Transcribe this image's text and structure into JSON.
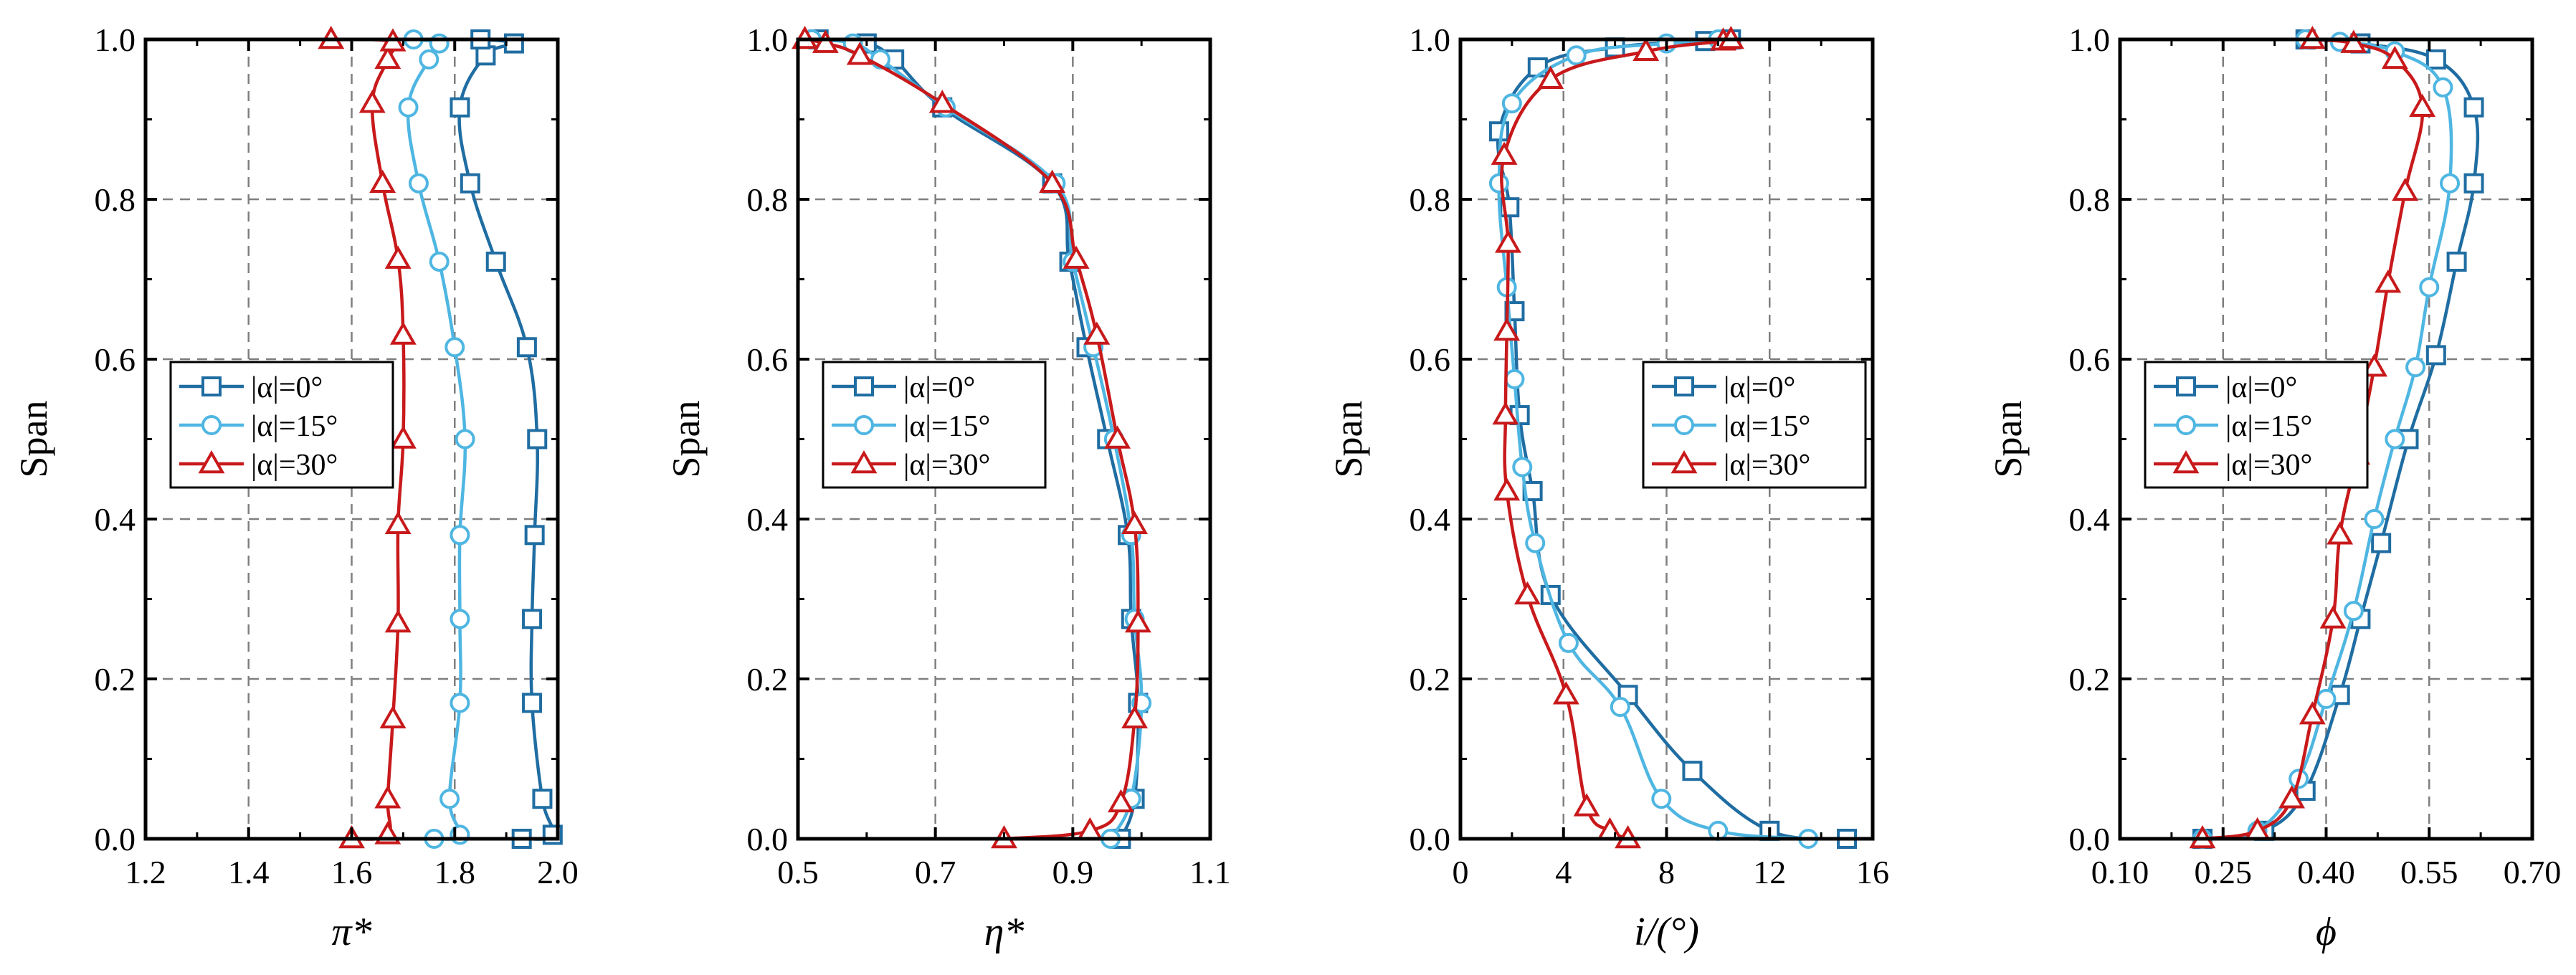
{
  "figure": {
    "colors": {
      "dark_blue": "#1f6da2",
      "light_blue": "#4fb6e2",
      "red": "#c8191b",
      "grid": "#7f7f7f"
    },
    "series_names": [
      "|α|=0°",
      "|α|=15°",
      "|α|=30°"
    ],
    "series_styles": [
      {
        "color": "#1f6da2",
        "marker": "square"
      },
      {
        "color": "#4fb6e2",
        "marker": "circle"
      },
      {
        "color": "#c8191b",
        "marker": "triangle"
      }
    ]
  },
  "chart_data": [
    {
      "type": "line",
      "xlabel": "π*",
      "ylabel": "Span",
      "xlim": [
        1.2,
        2.0
      ],
      "ylim": [
        0.0,
        1.0
      ],
      "xticks": [
        1.2,
        1.4,
        1.6,
        1.8,
        2.0
      ],
      "xtick_labels": [
        "1.2",
        "1.4",
        "1.6",
        "1.8",
        "2.0"
      ],
      "yticks": [
        0.0,
        0.2,
        0.4,
        0.6,
        0.8,
        1.0
      ],
      "ytick_labels": [
        "0.0",
        "0.2",
        "0.4",
        "0.6",
        "0.8",
        "1.0"
      ],
      "legend_position": "center-left",
      "series": [
        {
          "name": "|α|=0°",
          "points": [
            [
              1.93,
              0.0
            ],
            [
              1.99,
              0.005
            ],
            [
              1.97,
              0.05
            ],
            [
              1.95,
              0.17
            ],
            [
              1.95,
              0.275
            ],
            [
              1.955,
              0.38
            ],
            [
              1.96,
              0.5
            ],
            [
              1.94,
              0.615
            ],
            [
              1.88,
              0.722
            ],
            [
              1.83,
              0.82
            ],
            [
              1.81,
              0.915
            ],
            [
              1.86,
              0.98
            ],
            [
              1.915,
              0.995
            ],
            [
              1.85,
              1.0
            ]
          ]
        },
        {
          "name": "|α|=15°",
          "points": [
            [
              1.76,
              0.0
            ],
            [
              1.81,
              0.005
            ],
            [
              1.79,
              0.05
            ],
            [
              1.81,
              0.17
            ],
            [
              1.81,
              0.275
            ],
            [
              1.81,
              0.38
            ],
            [
              1.82,
              0.5
            ],
            [
              1.8,
              0.615
            ],
            [
              1.77,
              0.722
            ],
            [
              1.73,
              0.82
            ],
            [
              1.71,
              0.915
            ],
            [
              1.75,
              0.975
            ],
            [
              1.77,
              0.995
            ],
            [
              1.72,
              1.0
            ]
          ]
        },
        {
          "name": "|α|=30°",
          "points": [
            [
              1.6,
              0.0
            ],
            [
              1.67,
              0.005
            ],
            [
              1.67,
              0.05
            ],
            [
              1.68,
              0.15
            ],
            [
              1.69,
              0.27
            ],
            [
              1.69,
              0.393
            ],
            [
              1.7,
              0.5
            ],
            [
              1.7,
              0.63
            ],
            [
              1.69,
              0.725
            ],
            [
              1.66,
              0.82
            ],
            [
              1.64,
              0.92
            ],
            [
              1.67,
              0.975
            ],
            [
              1.68,
              0.997
            ],
            [
              1.56,
              1.0
            ]
          ]
        }
      ]
    },
    {
      "type": "line",
      "xlabel": "η*",
      "ylabel": "Span",
      "xlim": [
        0.5,
        1.1
      ],
      "ylim": [
        0.0,
        1.0
      ],
      "xticks": [
        0.5,
        0.7,
        0.9,
        1.1
      ],
      "xtick_labels": [
        "0.5",
        "0.7",
        "0.9",
        "1.1"
      ],
      "yticks": [
        0.0,
        0.2,
        0.4,
        0.6,
        0.8,
        1.0
      ],
      "ytick_labels": [
        "0.0",
        "0.2",
        "0.4",
        "0.6",
        "0.8",
        "1.0"
      ],
      "legend_position": "center-left",
      "series": [
        {
          "name": "|α|=0°",
          "points": [
            [
              0.97,
              0.0
            ],
            [
              0.99,
              0.05
            ],
            [
              0.995,
              0.17
            ],
            [
              0.985,
              0.275
            ],
            [
              0.98,
              0.38
            ],
            [
              0.95,
              0.5
            ],
            [
              0.92,
              0.615
            ],
            [
              0.895,
              0.722
            ],
            [
              0.87,
              0.82
            ],
            [
              0.71,
              0.915
            ],
            [
              0.64,
              0.975
            ],
            [
              0.6,
              0.995
            ],
            [
              0.53,
              1.0
            ]
          ]
        },
        {
          "name": "|α|=15°",
          "points": [
            [
              0.955,
              0.0
            ],
            [
              0.985,
              0.05
            ],
            [
              1.0,
              0.17
            ],
            [
              0.99,
              0.275
            ],
            [
              0.985,
              0.38
            ],
            [
              0.96,
              0.5
            ],
            [
              0.93,
              0.615
            ],
            [
              0.9,
              0.722
            ],
            [
              0.875,
              0.82
            ],
            [
              0.715,
              0.915
            ],
            [
              0.62,
              0.975
            ],
            [
              0.58,
              0.995
            ],
            [
              0.52,
              1.0
            ]
          ]
        },
        {
          "name": "|α|=30°",
          "points": [
            [
              0.8,
              0.0
            ],
            [
              0.925,
              0.01
            ],
            [
              0.97,
              0.045
            ],
            [
              0.99,
              0.15
            ],
            [
              0.995,
              0.27
            ],
            [
              0.99,
              0.393
            ],
            [
              0.965,
              0.5
            ],
            [
              0.935,
              0.63
            ],
            [
              0.905,
              0.725
            ],
            [
              0.87,
              0.82
            ],
            [
              0.71,
              0.92
            ],
            [
              0.59,
              0.98
            ],
            [
              0.54,
              0.995
            ],
            [
              0.51,
              1.0
            ]
          ]
        }
      ]
    },
    {
      "type": "line",
      "xlabel": "i/(°)",
      "ylabel": "Span",
      "xlim": [
        0,
        16
      ],
      "ylim": [
        0.0,
        1.0
      ],
      "xticks": [
        0,
        4,
        8,
        12,
        16
      ],
      "xtick_labels": [
        "0",
        "4",
        "8",
        "12",
        "16"
      ],
      "yticks": [
        0.0,
        0.2,
        0.4,
        0.6,
        0.8,
        1.0
      ],
      "ytick_labels": [
        "0.0",
        "0.2",
        "0.4",
        "0.6",
        "0.8",
        "1.0"
      ],
      "legend_position": "center-right",
      "series": [
        {
          "name": "|α|=0°",
          "points": [
            [
              15.0,
              0.0
            ],
            [
              12.0,
              0.01
            ],
            [
              9.0,
              0.085
            ],
            [
              6.5,
              0.18
            ],
            [
              3.5,
              0.305
            ],
            [
              2.8,
              0.435
            ],
            [
              2.3,
              0.53
            ],
            [
              2.1,
              0.66
            ],
            [
              1.9,
              0.79
            ],
            [
              1.5,
              0.885
            ],
            [
              3.0,
              0.965
            ],
            [
              6.0,
              0.99
            ],
            [
              9.5,
              0.998
            ],
            [
              10.5,
              1.0
            ]
          ]
        },
        {
          "name": "|α|=15°",
          "points": [
            [
              13.5,
              0.0
            ],
            [
              10.0,
              0.01
            ],
            [
              7.8,
              0.05
            ],
            [
              6.2,
              0.165
            ],
            [
              4.2,
              0.245
            ],
            [
              2.9,
              0.37
            ],
            [
              2.4,
              0.465
            ],
            [
              2.1,
              0.575
            ],
            [
              1.8,
              0.69
            ],
            [
              1.5,
              0.82
            ],
            [
              2.0,
              0.92
            ],
            [
              4.5,
              0.98
            ],
            [
              8.0,
              0.995
            ],
            [
              10.0,
              1.0
            ]
          ]
        },
        {
          "name": "|α|=30°",
          "points": [
            [
              6.5,
              0.0
            ],
            [
              5.8,
              0.01
            ],
            [
              4.9,
              0.04
            ],
            [
              4.1,
              0.18
            ],
            [
              2.6,
              0.305
            ],
            [
              1.8,
              0.435
            ],
            [
              1.75,
              0.53
            ],
            [
              1.8,
              0.635
            ],
            [
              1.85,
              0.745
            ],
            [
              1.7,
              0.855
            ],
            [
              3.5,
              0.95
            ],
            [
              7.2,
              0.985
            ],
            [
              10.2,
              0.998
            ],
            [
              10.5,
              1.0
            ]
          ]
        }
      ]
    },
    {
      "type": "line",
      "xlabel": "ϕ",
      "ylabel": "Span",
      "xlim": [
        0.1,
        0.7
      ],
      "ylim": [
        0.0,
        1.0
      ],
      "xticks": [
        0.1,
        0.25,
        0.4,
        0.55,
        0.7
      ],
      "xtick_labels": [
        "0.10",
        "0.25",
        "0.40",
        "0.55",
        "0.70"
      ],
      "yticks": [
        0.0,
        0.2,
        0.4,
        0.6,
        0.8,
        1.0
      ],
      "ytick_labels": [
        "0.0",
        "0.2",
        "0.4",
        "0.6",
        "0.8",
        "1.0"
      ],
      "legend_position": "center-left",
      "series": [
        {
          "name": "|α|=0°",
          "points": [
            [
              0.22,
              0.0
            ],
            [
              0.31,
              0.01
            ],
            [
              0.37,
              0.06
            ],
            [
              0.42,
              0.18
            ],
            [
              0.45,
              0.275
            ],
            [
              0.48,
              0.37
            ],
            [
              0.52,
              0.5
            ],
            [
              0.56,
              0.605
            ],
            [
              0.59,
              0.722
            ],
            [
              0.615,
              0.82
            ],
            [
              0.615,
              0.915
            ],
            [
              0.56,
              0.975
            ],
            [
              0.45,
              0.995
            ],
            [
              0.37,
              1.0
            ]
          ]
        },
        {
          "name": "|α|=15°",
          "points": [
            [
              0.22,
              0.0
            ],
            [
              0.3,
              0.01
            ],
            [
              0.36,
              0.075
            ],
            [
              0.4,
              0.175
            ],
            [
              0.44,
              0.285
            ],
            [
              0.47,
              0.4
            ],
            [
              0.5,
              0.5
            ],
            [
              0.53,
              0.59
            ],
            [
              0.55,
              0.69
            ],
            [
              0.58,
              0.82
            ],
            [
              0.57,
              0.94
            ],
            [
              0.5,
              0.985
            ],
            [
              0.42,
              0.997
            ],
            [
              0.37,
              1.0
            ]
          ]
        },
        {
          "name": "|α|=30°",
          "points": [
            [
              0.22,
              0.0
            ],
            [
              0.3,
              0.01
            ],
            [
              0.35,
              0.05
            ],
            [
              0.38,
              0.155
            ],
            [
              0.41,
              0.275
            ],
            [
              0.42,
              0.38
            ],
            [
              0.445,
              0.48
            ],
            [
              0.47,
              0.59
            ],
            [
              0.49,
              0.695
            ],
            [
              0.515,
              0.81
            ],
            [
              0.54,
              0.915
            ],
            [
              0.5,
              0.975
            ],
            [
              0.44,
              0.995
            ],
            [
              0.38,
              1.0
            ]
          ]
        }
      ]
    }
  ]
}
